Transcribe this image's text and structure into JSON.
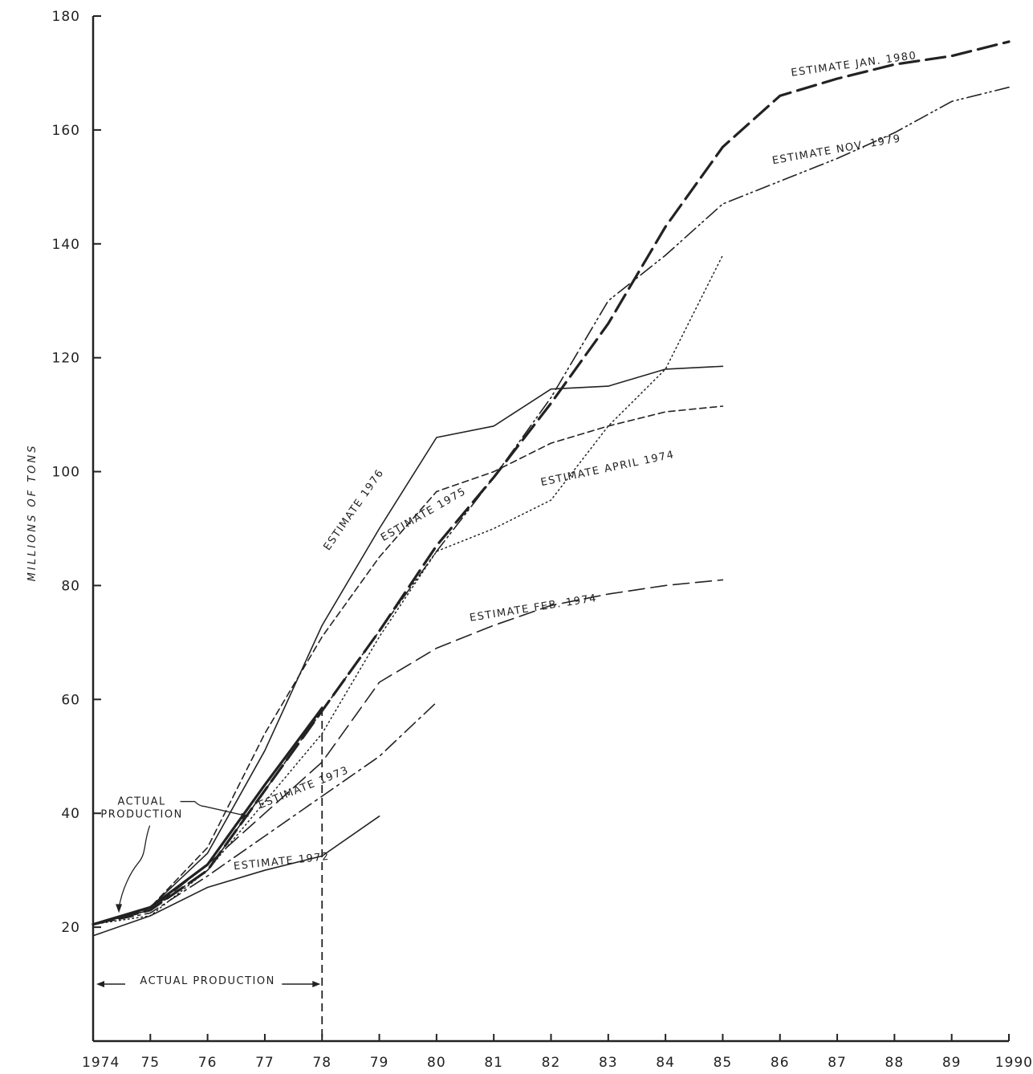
{
  "chart_data": {
    "type": "line",
    "title": "",
    "xlabel": "",
    "ylabel": "MILLIONS OF TONS",
    "xlim": [
      1974,
      1990
    ],
    "ylim": [
      0,
      180
    ],
    "x_ticks": [
      1974,
      1975,
      1976,
      1977,
      1978,
      1979,
      1980,
      1981,
      1982,
      1983,
      1984,
      1985,
      1986,
      1987,
      1988,
      1989,
      1990
    ],
    "x_tick_labels": [
      "1974",
      "75",
      "76",
      "77",
      "78",
      "79",
      "80",
      "81",
      "82",
      "83",
      "84",
      "85",
      "86",
      "87",
      "88",
      "89",
      "1990"
    ],
    "y_ticks": [
      20,
      40,
      60,
      80,
      100,
      120,
      140,
      160,
      180
    ],
    "y_tick_labels": [
      "20",
      "40",
      "60",
      "80",
      "100",
      "120",
      "140",
      "160",
      "180"
    ],
    "grid": false,
    "legend": "none",
    "series": [
      {
        "style": "solid-thick",
        "x": [
          1974,
          1975,
          1976,
          1977,
          1978
        ],
        "y": [
          20.5,
          23.5,
          31,
          45,
          58.5
        ]
      },
      {
        "style": "solid",
        "x": [
          1974,
          1975,
          1976,
          1977,
          1978,
          1979
        ],
        "y": [
          18.5,
          22,
          27,
          30,
          32.5,
          39.5
        ]
      },
      {
        "style": "dash-dot",
        "x": [
          1974,
          1975,
          1976,
          1977,
          1978,
          1979,
          1980
        ],
        "y": [
          20.5,
          22.5,
          29,
          36,
          43,
          50,
          59.5
        ]
      },
      {
        "style": "long-dash",
        "x": [
          1974,
          1975,
          1976,
          1977,
          1978,
          1979,
          1980,
          1981,
          1982,
          1983,
          1984,
          1985
        ],
        "y": [
          20.5,
          23,
          31,
          40,
          49,
          63,
          69,
          73,
          76.5,
          78.5,
          80,
          81
        ]
      },
      {
        "style": "dotted",
        "x": [
          1974,
          1975,
          1976,
          1977,
          1978,
          1979,
          1980,
          1981,
          1982,
          1983,
          1984,
          1985
        ],
        "y": [
          20.5,
          22,
          30,
          42,
          54,
          71,
          86,
          90,
          95,
          108,
          118,
          138
        ]
      },
      {
        "style": "short-dash",
        "x": [
          1974,
          1975,
          1976,
          1977,
          1978,
          1979,
          1980,
          1981,
          1982,
          1983,
          1984,
          1985
        ],
        "y": [
          20.5,
          23.5,
          34,
          54,
          71,
          85,
          96.5,
          100,
          105,
          108,
          110.5,
          111.5
        ]
      },
      {
        "style": "solid",
        "x": [
          1974,
          1975,
          1976,
          1977,
          1978,
          1979,
          1980,
          1981,
          1982,
          1983,
          1984,
          1985
        ],
        "y": [
          20.5,
          23.5,
          33,
          51,
          73,
          90,
          106,
          108,
          114.5,
          115,
          118,
          118.5
        ]
      },
      {
        "style": "dash-dot-dot",
        "x": [
          1974,
          1975,
          1976,
          1977,
          1978,
          1979,
          1980,
          1981,
          1982,
          1983,
          1984,
          1985,
          1986,
          1987,
          1988,
          1989,
          1990
        ],
        "y": [
          20.5,
          23,
          30,
          44,
          58,
          72,
          86,
          99,
          113,
          130,
          138,
          147,
          151,
          155,
          159.5,
          165,
          167.5
        ]
      },
      {
        "style": "heavy-dash",
        "x": [
          1974,
          1975,
          1976,
          1977,
          1978,
          1979,
          1980,
          1981,
          1982,
          1983,
          1984,
          1985,
          1986,
          1987,
          1988,
          1989,
          1990
        ],
        "y": [
          20.5,
          23,
          30,
          44,
          58,
          72,
          87,
          99,
          112,
          126,
          143,
          157,
          166,
          169,
          171.5,
          173,
          175.5
        ]
      }
    ],
    "annotations": [
      {
        "text": "ESTIMATE 1972",
        "x": 1977.3,
        "y": 31,
        "angle": -6,
        "series": 1
      },
      {
        "text": "ESTIMATE 1973",
        "x": 1977.7,
        "y": 44,
        "angle": -22,
        "series": 2
      },
      {
        "text": "ESTIMATE FEB. 1974",
        "x": 1981.7,
        "y": 75.5,
        "angle": -9,
        "series": 3
      },
      {
        "text": "ESTIMATE APRIL 1974",
        "x": 1983,
        "y": 100,
        "angle": -12,
        "series": 4
      },
      {
        "text": "ESTIMATE 1975",
        "x": 1979.8,
        "y": 92,
        "angle": -30,
        "series": 5
      },
      {
        "text": "ESTIMATE 1976",
        "x": 1978.6,
        "y": 93,
        "angle": -55,
        "series": 6
      },
      {
        "text": "ESTIMATE NOV. 1979",
        "x": 1987,
        "y": 156,
        "angle": -10,
        "series": 7
      },
      {
        "text": "ESTIMATE JAN. 1980",
        "x": 1987.3,
        "y": 171,
        "angle": -8,
        "series": 8
      },
      {
        "text": "ACTUAL PRODUCTION",
        "x": 1976,
        "y": 10,
        "angle": 0,
        "series": 0
      }
    ],
    "actual_production_callout": [
      "ACTUAL",
      "PRODUCTION"
    ],
    "actual_production_range": [
      1974,
      1978
    ]
  }
}
